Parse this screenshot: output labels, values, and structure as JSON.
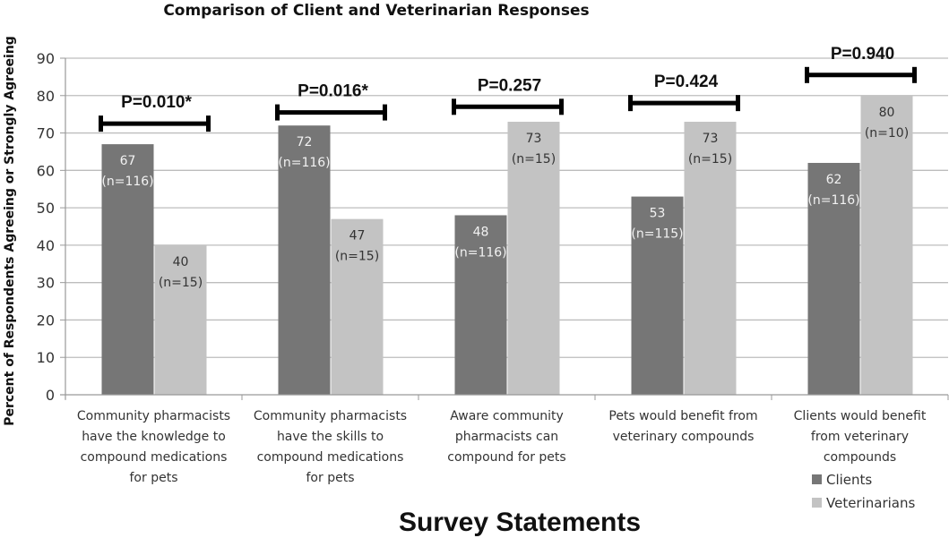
{
  "chart_data": {
    "type": "bar",
    "title": "Comparison of Client and Veterinarian Responses",
    "xlabel": "Survey Statements",
    "ylabel": "Percent of Respondents Agreeing or Strongly Agreeing",
    "ylim": [
      0,
      90
    ],
    "yticks": [
      0,
      10,
      20,
      30,
      40,
      50,
      60,
      70,
      80,
      90
    ],
    "grid": true,
    "legend_position": "bottom-right",
    "categories": [
      [
        "Community pharmacists",
        "have the knowledge to",
        "compound medications",
        "for pets"
      ],
      [
        "Community pharmacists",
        "have the skills to",
        "compound medications",
        "for pets"
      ],
      [
        "Aware community",
        "pharmacists can",
        "compound for pets"
      ],
      [
        "Pets would benefit from",
        "veterinary compounds"
      ],
      [
        "Clients would benefit",
        "from veterinary",
        "compounds"
      ]
    ],
    "series": [
      {
        "name": "Clients",
        "color": "#767676",
        "values": [
          67,
          72,
          48,
          53,
          62
        ],
        "n_labels": [
          "(n=116)",
          "(n=116)",
          "(n=116)",
          "(n=115)",
          "(n=116)"
        ]
      },
      {
        "name": "Veterinarians",
        "color": "#c3c3c3",
        "values": [
          40,
          47,
          73,
          73,
          80
        ],
        "n_labels": [
          "(n=15)",
          "(n=15)",
          "(n=15)",
          "(n=15)",
          "(n=10)"
        ]
      }
    ],
    "annotations": [
      {
        "label": "P=0.010*",
        "level": 72.5
      },
      {
        "label": "P=0.016*",
        "level": 75.5
      },
      {
        "label": "P=0.257",
        "level": 77
      },
      {
        "label": "P=0.424",
        "level": 78
      },
      {
        "label": "P=0.940",
        "level": 85.5
      }
    ]
  }
}
